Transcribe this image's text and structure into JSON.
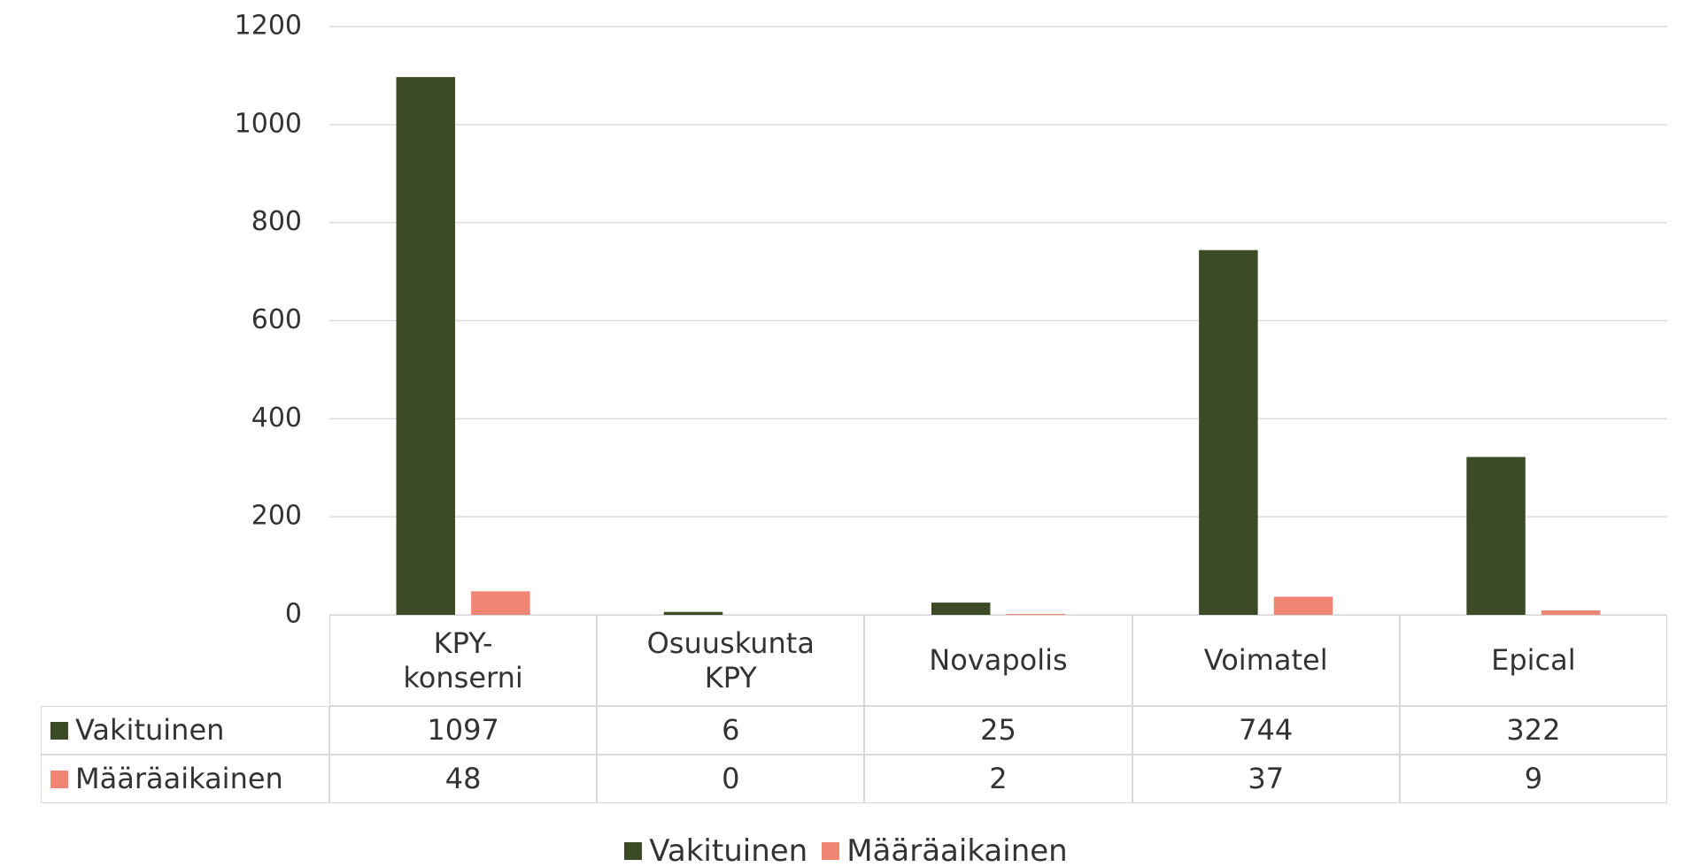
{
  "chart_data": {
    "type": "bar",
    "categories": [
      "KPY-konserni",
      "Osuuskunta KPY",
      "Novapolis",
      "Voimatel",
      "Epical"
    ],
    "series": [
      {
        "name": "Vakituinen",
        "color": "#3d4a26",
        "values": [
          1097,
          6,
          25,
          744,
          322
        ]
      },
      {
        "name": "Määräaikainen",
        "color": "#f08574",
        "values": [
          48,
          0,
          2,
          37,
          9
        ]
      }
    ],
    "ylim": [
      0,
      1200
    ],
    "yticks": [
      0,
      200,
      400,
      600,
      800,
      1000,
      1200
    ],
    "grid": true,
    "legend": "bottom"
  }
}
